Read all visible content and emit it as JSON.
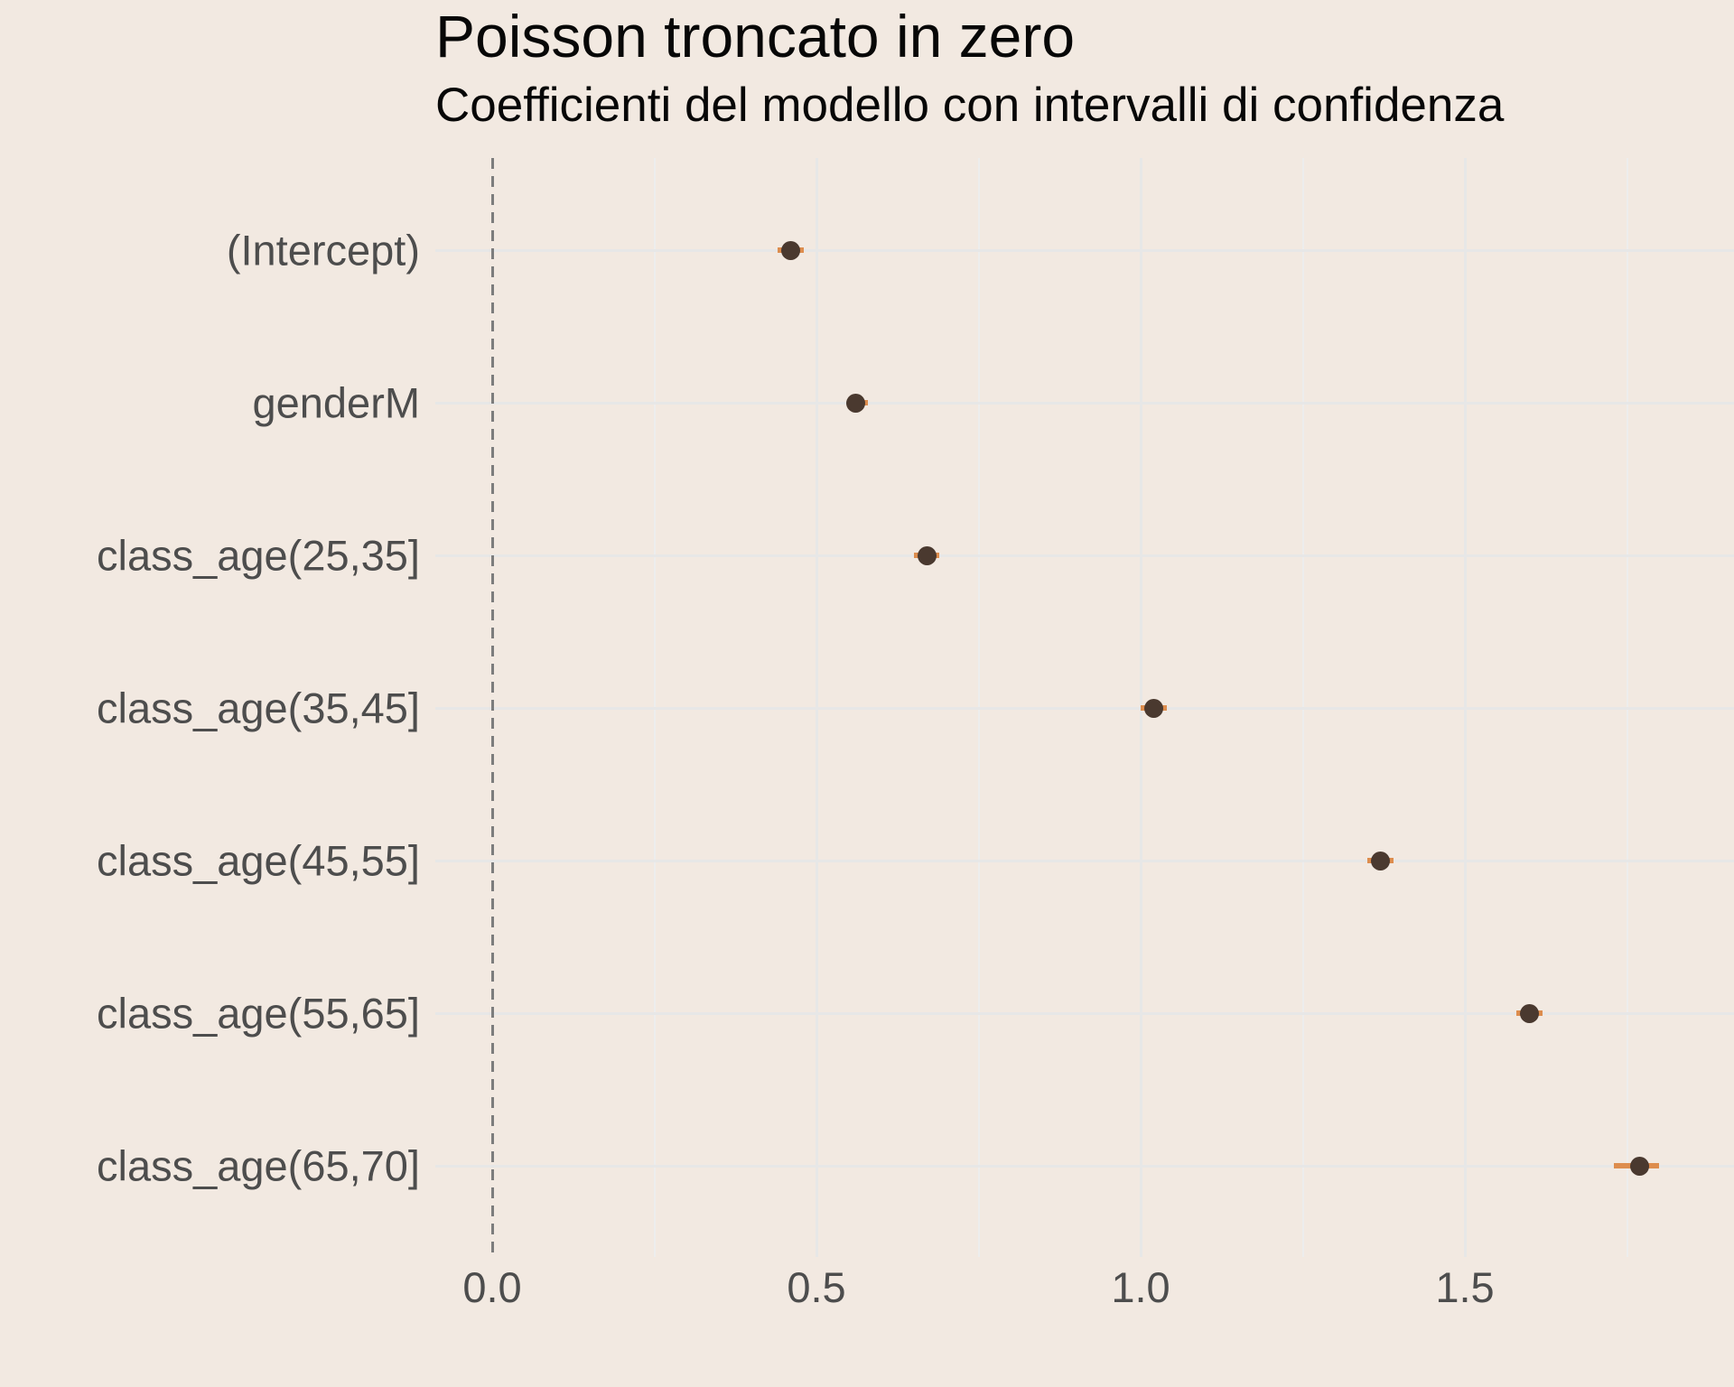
{
  "chart_data": {
    "type": "scatter",
    "subtype": "coefficient-dot-whisker",
    "title": "Poisson troncato in zero",
    "subtitle": "Coefficienti del modello con intervalli di confidenza",
    "categories": [
      "(Intercept)",
      "genderM",
      "class_age(25,35]",
      "class_age(35,45]",
      "class_age(45,55]",
      "class_age(55,65]",
      "class_age(65,70]"
    ],
    "series": [
      {
        "name": "estimate",
        "values": [
          0.46,
          0.56,
          0.67,
          1.02,
          1.37,
          1.6,
          1.77
        ]
      },
      {
        "name": "ci_low",
        "values": [
          0.44,
          0.55,
          0.65,
          1.0,
          1.35,
          1.58,
          1.73
        ]
      },
      {
        "name": "ci_high",
        "values": [
          0.48,
          0.58,
          0.69,
          1.04,
          1.39,
          1.62,
          1.8
        ]
      }
    ],
    "xlabel": "",
    "ylabel": "",
    "x_ticks": [
      {
        "value": 0.0,
        "label": "0.0"
      },
      {
        "value": 0.5,
        "label": "0.5"
      },
      {
        "value": 1.0,
        "label": "1.0"
      },
      {
        "value": 1.5,
        "label": "1.5"
      }
    ],
    "x_minor_gridlines": [
      0.25,
      0.75,
      1.25,
      1.75
    ],
    "xlim": [
      -0.09,
      1.92
    ],
    "reference_line_x": 0,
    "grid": "on",
    "legend": "none",
    "colors": {
      "background": "#f2e9e1",
      "point": "#4a392f",
      "ci_bar": "#dd8d4e",
      "grid_major": "#e7e7e7",
      "grid_minor": "#ededed",
      "axis_text": "#4d4d4d",
      "title_text": "#070707",
      "reference_line": "#7d7d7d"
    }
  }
}
